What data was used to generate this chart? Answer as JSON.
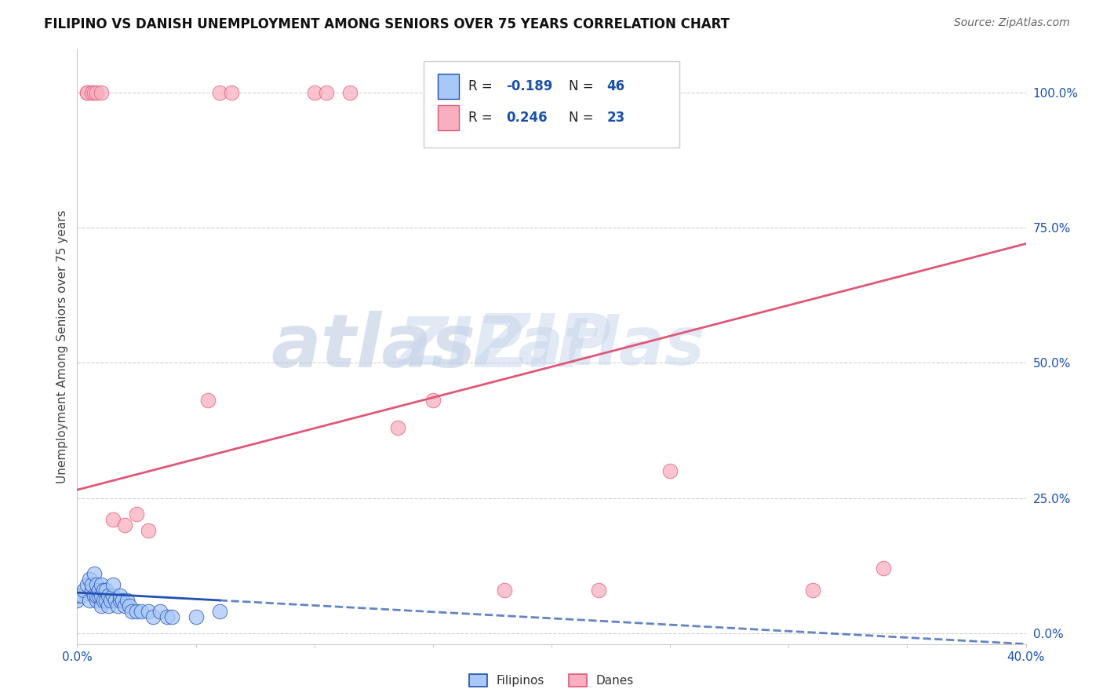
{
  "title": "FILIPINO VS DANISH UNEMPLOYMENT AMONG SENIORS OVER 75 YEARS CORRELATION CHART",
  "source": "Source: ZipAtlas.com",
  "ylabel": "Unemployment Among Seniors over 75 years",
  "xlim": [
    0.0,
    0.4
  ],
  "ylim": [
    -0.02,
    1.08
  ],
  "yticks": [
    0.0,
    0.25,
    0.5,
    0.75,
    1.0
  ],
  "ytick_labels": [
    "0.0%",
    "25.0%",
    "50.0%",
    "75.0%",
    "100.0%"
  ],
  "xticks": [
    0.0,
    0.05,
    0.1,
    0.15,
    0.2,
    0.25,
    0.3,
    0.35,
    0.4
  ],
  "xtick_labels": [
    "0.0%",
    "",
    "",
    "",
    "",
    "",
    "",
    "",
    "40.0%"
  ],
  "filipino_color": "#a8c8f8",
  "danish_color": "#f8b0c0",
  "filipino_line_color": "#2050b0",
  "danish_line_color": "#e05878",
  "watermark_top": "ZIP",
  "watermark_bot": "atlas",
  "R_filipino": -0.189,
  "N_filipino": 46,
  "R_danish": 0.246,
  "N_danish": 23,
  "filipino_scatter_x": [
    0.0,
    0.0,
    0.002,
    0.003,
    0.004,
    0.005,
    0.005,
    0.006,
    0.006,
    0.007,
    0.007,
    0.008,
    0.008,
    0.008,
    0.009,
    0.009,
    0.01,
    0.01,
    0.01,
    0.011,
    0.011,
    0.012,
    0.012,
    0.013,
    0.013,
    0.014,
    0.015,
    0.015,
    0.016,
    0.017,
    0.018,
    0.018,
    0.019,
    0.02,
    0.021,
    0.022,
    0.023,
    0.025,
    0.027,
    0.03,
    0.032,
    0.035,
    0.038,
    0.04,
    0.05,
    0.06
  ],
  "filipino_scatter_y": [
    0.06,
    0.07,
    0.07,
    0.08,
    0.09,
    0.06,
    0.1,
    0.08,
    0.09,
    0.07,
    0.11,
    0.06,
    0.07,
    0.09,
    0.07,
    0.08,
    0.05,
    0.07,
    0.09,
    0.06,
    0.08,
    0.06,
    0.08,
    0.05,
    0.07,
    0.06,
    0.07,
    0.09,
    0.06,
    0.05,
    0.06,
    0.07,
    0.06,
    0.05,
    0.06,
    0.05,
    0.04,
    0.04,
    0.04,
    0.04,
    0.03,
    0.04,
    0.03,
    0.03,
    0.03,
    0.04
  ],
  "danish_scatter_x": [
    0.004,
    0.004,
    0.006,
    0.007,
    0.008,
    0.01,
    0.015,
    0.02,
    0.025,
    0.03,
    0.055,
    0.06,
    0.065,
    0.1,
    0.105,
    0.115,
    0.135,
    0.15,
    0.18,
    0.22,
    0.25,
    0.31,
    0.34
  ],
  "danish_scatter_y": [
    1.0,
    1.0,
    1.0,
    1.0,
    1.0,
    1.0,
    0.21,
    0.2,
    0.22,
    0.19,
    0.43,
    1.0,
    1.0,
    1.0,
    1.0,
    1.0,
    0.38,
    0.43,
    0.08,
    0.08,
    0.3,
    0.08,
    0.12
  ],
  "danish_line_x0": 0.0,
  "danish_line_y0": 0.265,
  "danish_line_x1": 0.4,
  "danish_line_y1": 0.72,
  "filipino_line_x0": 0.0,
  "filipino_line_y0": 0.075,
  "filipino_line_x1": 0.4,
  "filipino_line_y1": -0.02,
  "filipino_solid_cutoff": 0.06
}
